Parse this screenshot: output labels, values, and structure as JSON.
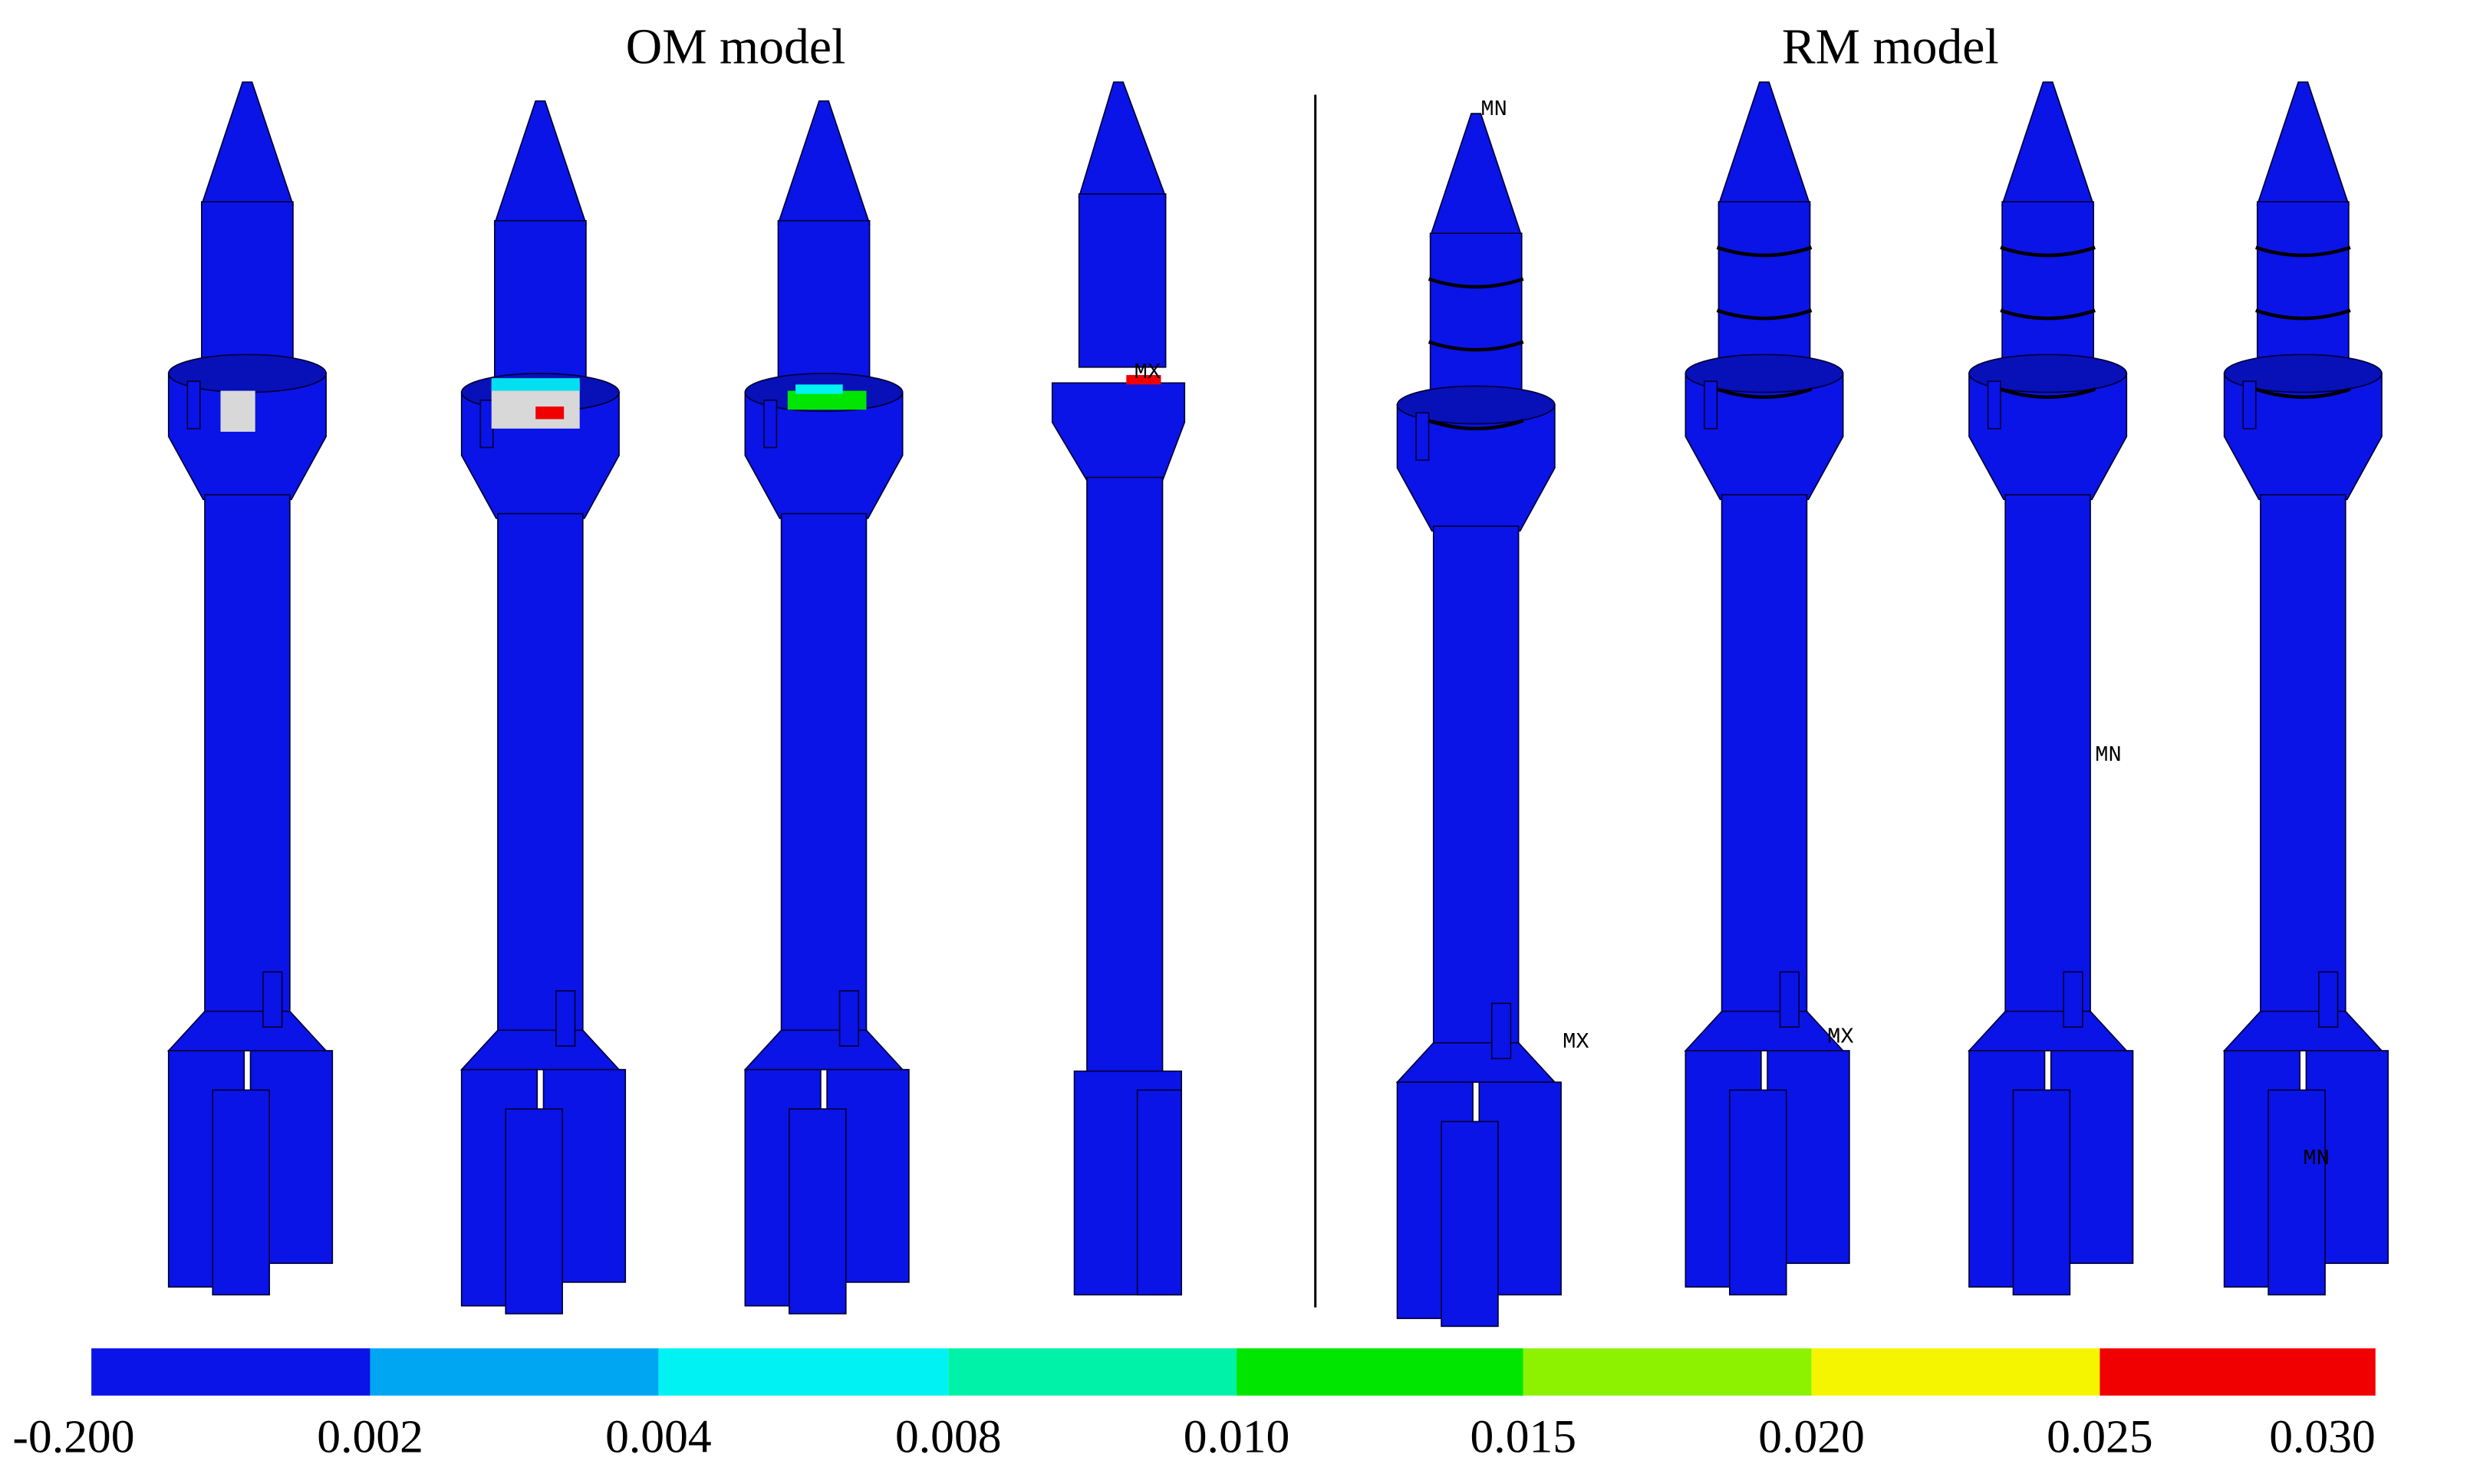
{
  "titles": {
    "left": "OM model",
    "right": "RM model"
  },
  "annotations": [
    "MX",
    "MN",
    "MX",
    "MX",
    "MN",
    "MN"
  ],
  "colorbar": {
    "colors": [
      "#0a14e8",
      "#00a6f2",
      "#00f2f2",
      "#00f2a8",
      "#00e600",
      "#8cf200",
      "#f5f500",
      "#f00000"
    ],
    "labels": [
      "-0.200",
      "0.002",
      "0.004",
      "0.008",
      "0.010",
      "0.015",
      "0.020",
      "0.025",
      "0.030"
    ]
  }
}
